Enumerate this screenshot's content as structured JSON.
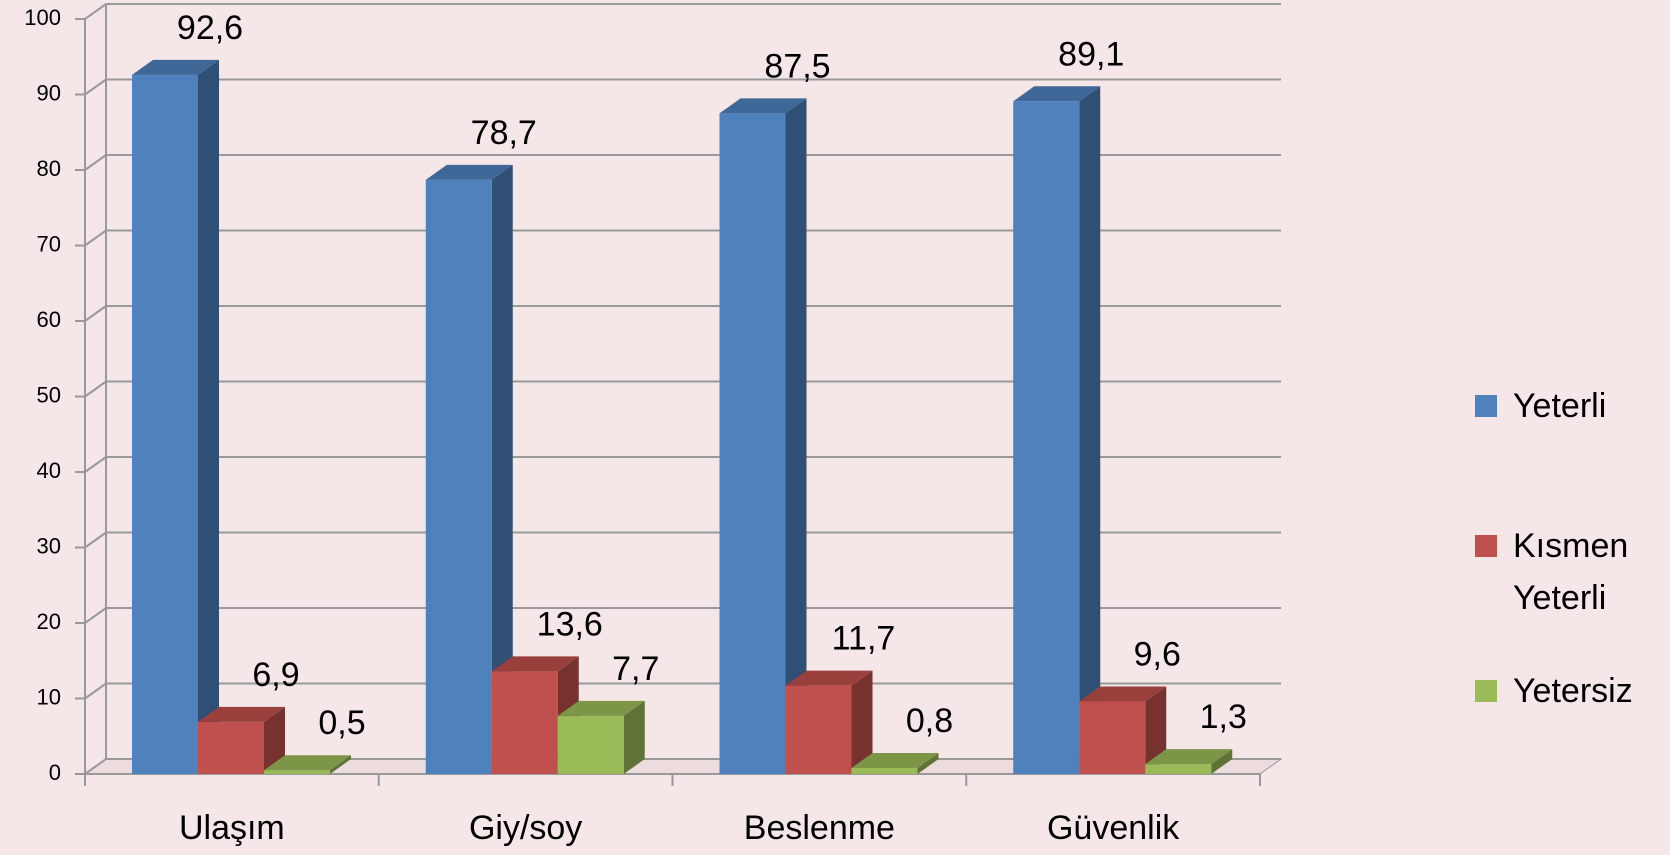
{
  "chart_data": {
    "type": "bar3d",
    "categories": [
      "Ulaşım",
      "Giy/soy",
      "Beslenme",
      "Güvenlik"
    ],
    "series": [
      {
        "name": "Yeterli",
        "color": "#4f81bd",
        "values": [
          92.6,
          78.7,
          87.5,
          89.1
        ],
        "value_labels": [
          "92,6",
          "78,7",
          "87,5",
          "89,1"
        ]
      },
      {
        "name": "Kısmen Yeterli",
        "color": "#c0504d",
        "values": [
          6.9,
          13.6,
          11.7,
          9.6
        ],
        "value_labels": [
          "6,9",
          "13,6",
          "11,7",
          "9,6"
        ]
      },
      {
        "name": "Yetersiz",
        "color": "#9bbb59",
        "values": [
          0.5,
          7.7,
          0.8,
          1.3
        ],
        "value_labels": [
          "0,5",
          "7,7",
          "0,8",
          "1,3"
        ]
      }
    ],
    "ylim": [
      0,
      100
    ],
    "yticks": [
      0,
      10,
      20,
      30,
      40,
      50,
      60,
      70,
      80,
      90,
      100
    ],
    "grid": true,
    "legend": "right"
  }
}
